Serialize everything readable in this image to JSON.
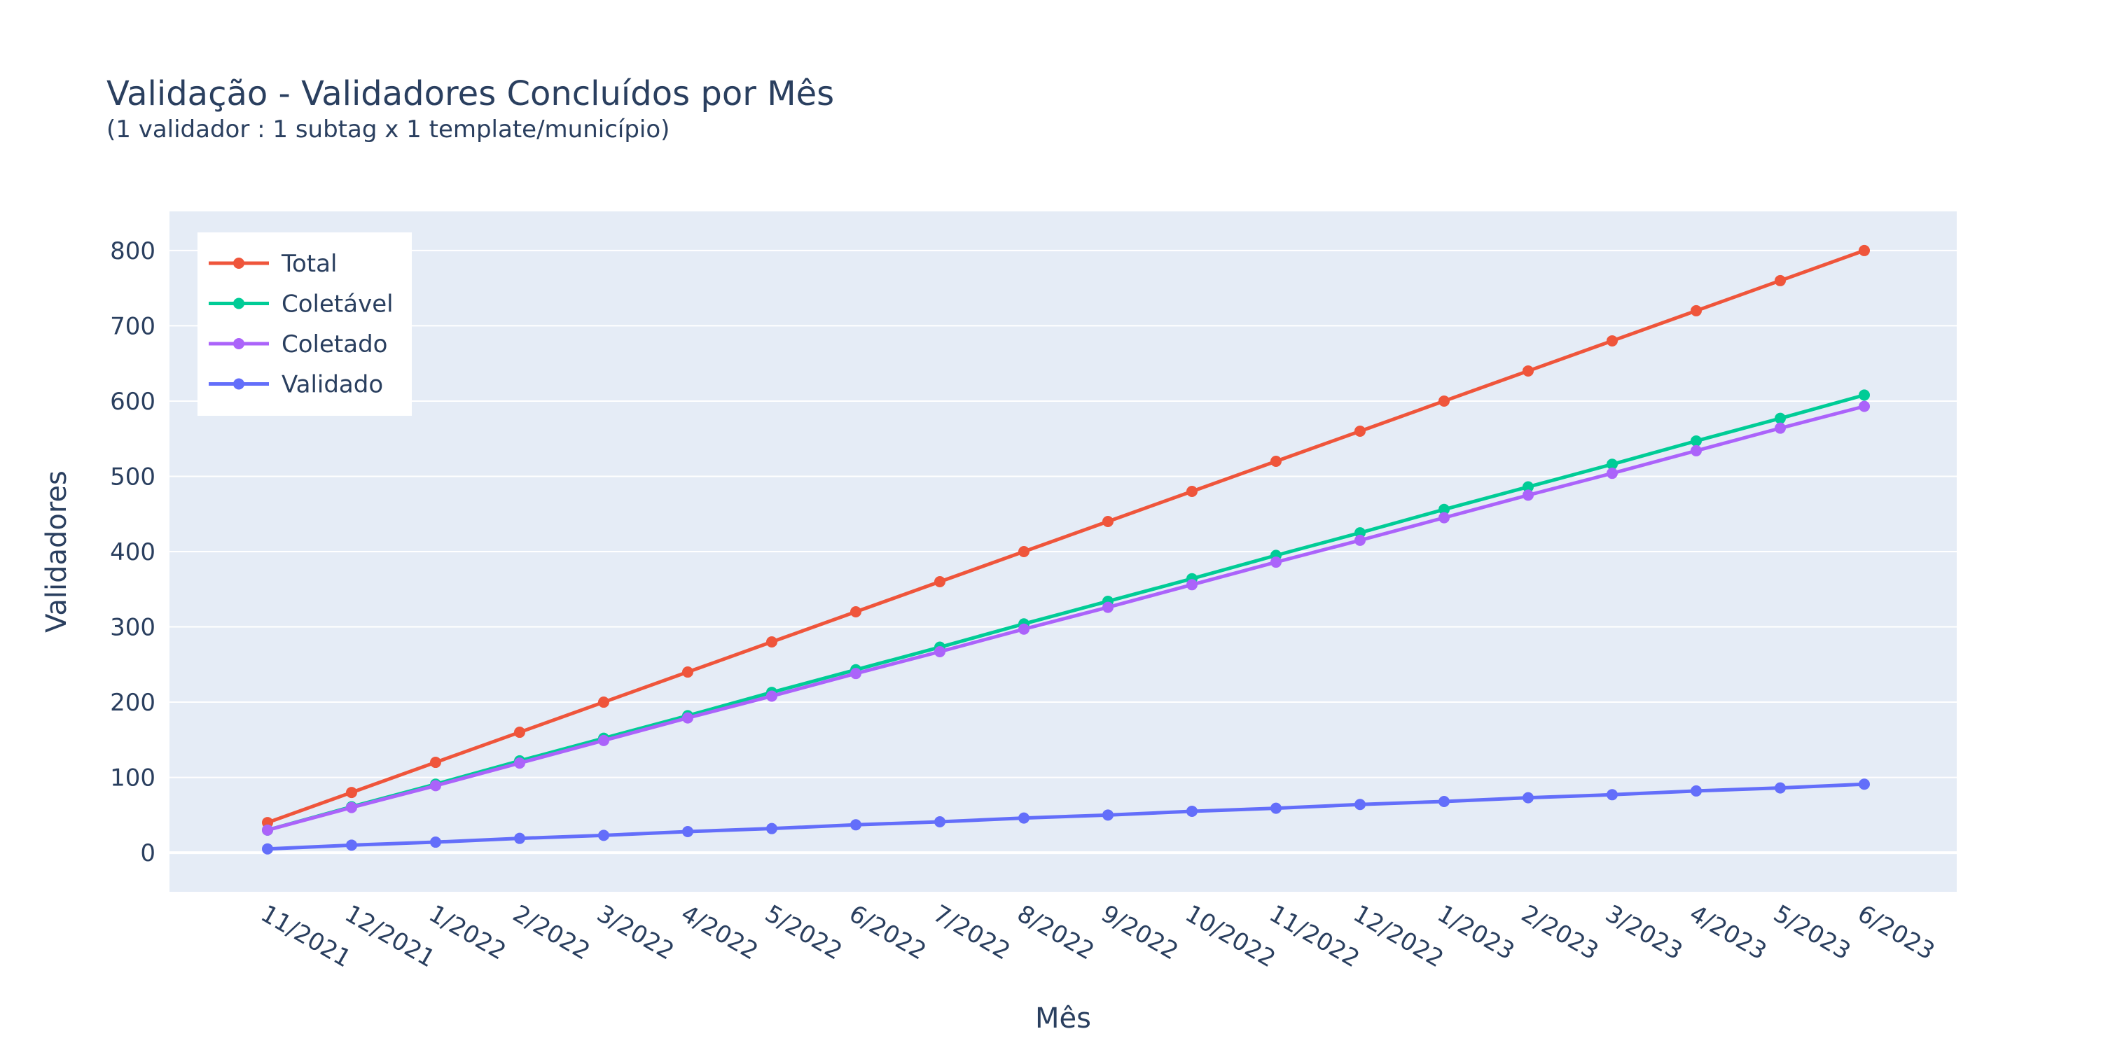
{
  "chart_data": {
    "type": "line",
    "title": "Validação - Validadores Concluídos por Mês",
    "subtitle": "(1 validador : 1 subtag x 1 template/município)",
    "xlabel": "Mês",
    "ylabel": "Validadores",
    "ylim": [
      -52,
      852
    ],
    "yticks": [
      0,
      100,
      200,
      300,
      400,
      500,
      600,
      700,
      800
    ],
    "grid": true,
    "legend_position": "top-left",
    "categories": [
      "11/2021",
      "12/2021",
      "1/2022",
      "2/2022",
      "3/2022",
      "4/2022",
      "5/2022",
      "6/2022",
      "7/2022",
      "8/2022",
      "9/2022",
      "10/2022",
      "11/2022",
      "12/2022",
      "1/2023",
      "2/2023",
      "3/2023",
      "4/2023",
      "5/2023",
      "6/2023"
    ],
    "series": [
      {
        "name": "Total",
        "color": "#EF553B",
        "values": [
          40,
          80,
          120,
          160,
          200,
          240,
          280,
          320,
          360,
          400,
          440,
          480,
          520,
          560,
          600,
          640,
          680,
          720,
          760,
          800
        ]
      },
      {
        "name": "Coletável",
        "color": "#00CC96",
        "values": [
          30,
          61,
          91,
          122,
          152,
          182,
          213,
          243,
          273,
          304,
          334,
          364,
          395,
          425,
          456,
          486,
          516,
          547,
          577,
          608
        ]
      },
      {
        "name": "Coletado",
        "color": "#AB63FA",
        "values": [
          30,
          60,
          89,
          119,
          149,
          179,
          208,
          238,
          267,
          297,
          326,
          356,
          386,
          415,
          445,
          475,
          504,
          534,
          564,
          593
        ]
      },
      {
        "name": "Validado",
        "color": "#636EFA",
        "values": [
          5,
          10,
          14,
          19,
          23,
          28,
          32,
          37,
          41,
          46,
          50,
          55,
          59,
          64,
          68,
          73,
          77,
          82,
          86,
          91
        ]
      }
    ]
  }
}
